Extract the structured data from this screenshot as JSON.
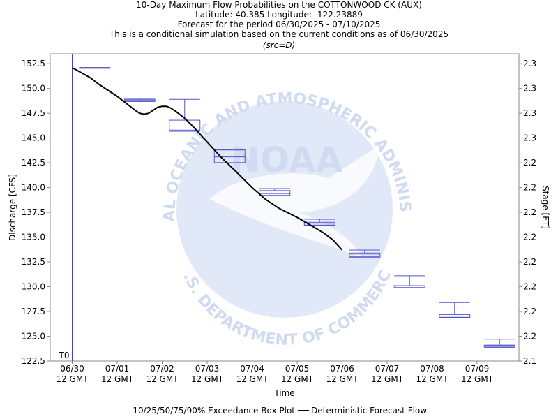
{
  "titles": [
    "10-Day Maximum Flow Probabilities on the COTTONWOOD CK (AUX)",
    "Latitude: 40.385 Longitude: -122.23889",
    "Forecast for the period 06/30/2025 - 07/10/2025",
    "This is a conditional simulation based on the current conditions as of 06/30/2025"
  ],
  "source_note": "(src=D)",
  "watermark": {
    "wordmark": "NOAA",
    "top_arc": "NATIONAL OCEANIC AND ATMOSPHERIC ADMINISTRATION",
    "bottom_arc": "U.S. DEPARTMENT OF COMMERCE"
  },
  "t0_label": "T0",
  "legend": {
    "box_label": "10/25/50/75/90% Exceedance Box Plot",
    "line_label": "Deterministic Forecast Flow"
  },
  "colors": {
    "box": "#5555cc",
    "line": "#000000",
    "t0_line": "#4444aa",
    "watermark": "#c8d4ee"
  },
  "chart_data": {
    "type": "box",
    "xlabel": "Time",
    "ylabel": "Discharge [CFS]",
    "y2label": "Stage [FT]",
    "ylim": [
      122.5,
      153.5
    ],
    "xlim_days": [
      0,
      10.2
    ],
    "y_ticks": [
      "122.5",
      "125.0",
      "127.5",
      "130.0",
      "132.5",
      "135.0",
      "137.5",
      "140.0",
      "142.5",
      "145.0",
      "147.5",
      "150.0",
      "152.5"
    ],
    "y2_ticks": [
      "2.1",
      "2.2",
      "2.2",
      "2.2",
      "2.2",
      "2.2",
      "2.2",
      "2.2",
      "2.2",
      "2.3",
      "2.3",
      "2.3",
      "2.3"
    ],
    "x_ticks": [
      {
        "day": 0,
        "date": "06/30",
        "time": "12 GMT"
      },
      {
        "day": 1,
        "date": "07/01",
        "time": "12 GMT"
      },
      {
        "day": 2,
        "date": "07/02",
        "time": "12 GMT"
      },
      {
        "day": 3,
        "date": "07/03",
        "time": "12 GMT"
      },
      {
        "day": 4,
        "date": "07/04",
        "time": "12 GMT"
      },
      {
        "day": 5,
        "date": "07/05",
        "time": "12 GMT"
      },
      {
        "day": 6,
        "date": "07/06",
        "time": "12 GMT"
      },
      {
        "day": 7,
        "date": "07/07",
        "time": "12 GMT"
      },
      {
        "day": 8,
        "date": "07/08",
        "time": "12 GMT"
      },
      {
        "day": 9,
        "date": "07/09",
        "time": "12 GMT"
      }
    ],
    "boxes": [
      {
        "day": 0.5,
        "p10": 152.1,
        "p25": 152.1,
        "p50": 152.1,
        "p75": 152.1,
        "p90": 152.1
      },
      {
        "day": 1.5,
        "p10": 148.7,
        "p25": 148.7,
        "p50": 148.8,
        "p75": 148.9,
        "p90": 149.0
      },
      {
        "day": 2.5,
        "p10": 145.7,
        "p25": 145.8,
        "p50": 146.0,
        "p75": 146.8,
        "p90": 148.9
      },
      {
        "day": 3.5,
        "p10": 142.5,
        "p25": 142.5,
        "p50": 143.1,
        "p75": 143.8,
        "p90": 143.8
      },
      {
        "day": 4.5,
        "p10": 139.2,
        "p25": 139.2,
        "p50": 139.4,
        "p75": 139.7,
        "p90": 139.9
      },
      {
        "day": 5.5,
        "p10": 136.2,
        "p25": 136.2,
        "p50": 136.4,
        "p75": 136.5,
        "p90": 136.8
      },
      {
        "day": 6.5,
        "p10": 133.0,
        "p25": 133.0,
        "p50": 133.3,
        "p75": 133.4,
        "p90": 133.7
      },
      {
        "day": 7.5,
        "p10": 129.9,
        "p25": 129.9,
        "p50": 130.1,
        "p75": 130.1,
        "p90": 131.1
      },
      {
        "day": 8.5,
        "p10": 126.9,
        "p25": 126.9,
        "p50": 127.2,
        "p75": 127.2,
        "p90": 128.4
      },
      {
        "day": 9.5,
        "p10": 123.9,
        "p25": 123.9,
        "p50": 124.1,
        "p75": 124.1,
        "p90": 124.7
      }
    ],
    "forecast": [
      [
        0.0,
        152.1
      ],
      [
        0.2,
        151.6
      ],
      [
        0.4,
        151.1
      ],
      [
        0.6,
        150.4
      ],
      [
        0.8,
        149.8
      ],
      [
        1.0,
        149.2
      ],
      [
        1.2,
        148.5
      ],
      [
        1.4,
        147.8
      ],
      [
        1.5,
        147.5
      ],
      [
        1.6,
        147.4
      ],
      [
        1.7,
        147.5
      ],
      [
        1.8,
        147.8
      ],
      [
        1.9,
        148.1
      ],
      [
        2.0,
        148.2
      ],
      [
        2.1,
        148.2
      ],
      [
        2.2,
        148.0
      ],
      [
        2.3,
        147.7
      ],
      [
        2.5,
        147.0
      ],
      [
        2.7,
        146.1
      ],
      [
        3.0,
        144.6
      ],
      [
        3.3,
        143.1
      ],
      [
        3.6,
        141.8
      ],
      [
        4.0,
        140.0
      ],
      [
        4.3,
        138.8
      ],
      [
        4.6,
        137.9
      ],
      [
        5.0,
        137.0
      ],
      [
        5.3,
        136.2
      ],
      [
        5.6,
        135.4
      ],
      [
        5.8,
        134.7
      ],
      [
        6.0,
        133.7
      ]
    ]
  }
}
